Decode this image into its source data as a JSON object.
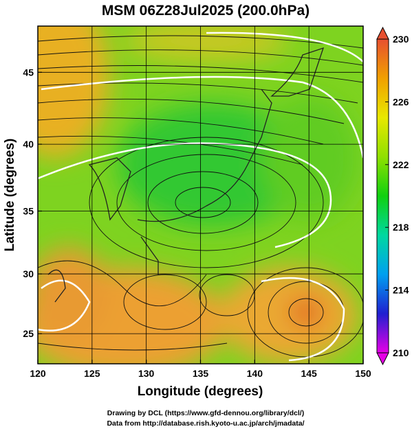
{
  "chart_data": {
    "type": "map",
    "title": "MSM 06Z28Jul2025 (200.0hPa)",
    "x_label": "Longitude (degrees)",
    "y_label": "Latitude  (degrees)",
    "credits": [
      "Drawing by DCL (https://www.gfd-dennou.org/library/dcl/)",
      "Data from http://database.rish.kyoto-u.ac.jp/arch/jmadata/"
    ],
    "projection": "mercator",
    "xlim": [
      120,
      150
    ],
    "xticks": [
      120,
      125,
      130,
      135,
      140,
      145,
      150
    ],
    "ylim": [
      22.4,
      48
    ],
    "yticks": [
      25,
      30,
      35,
      40,
      45
    ],
    "grid": true,
    "colorbar": {
      "lim": [
        210,
        230
      ],
      "ticks": [
        210,
        214,
        218,
        222,
        226,
        230
      ],
      "colors": [
        "#e600e6",
        "#2020d0",
        "#00a0f0",
        "#00d8a0",
        "#10d010",
        "#90e000",
        "#e8e800",
        "#f0a000",
        "#e85030"
      ]
    }
  }
}
